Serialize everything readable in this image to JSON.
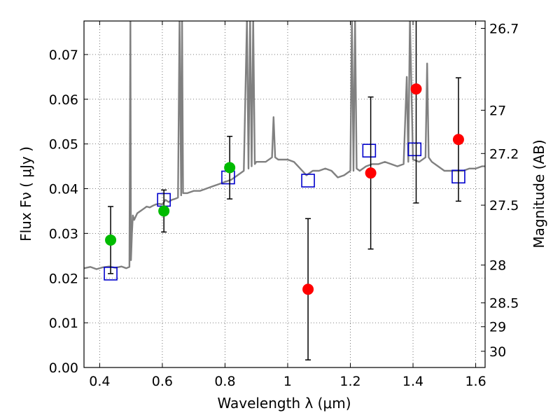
{
  "chart_data": {
    "type": "scatter",
    "title": "",
    "xlabel": "Wavelength  λ (μm)",
    "ylabel": "Flux  Fν  ( μJy )",
    "ylabel_right": "Magnitude (AB)",
    "xlim": [
      0.35,
      1.63
    ],
    "ylim": [
      0.0,
      0.0775
    ],
    "grid": true,
    "x_ticks": [
      {
        "value": 0.4,
        "label": "0.4"
      },
      {
        "value": 0.6,
        "label": "0.6"
      },
      {
        "value": 0.8,
        "label": "0.8"
      },
      {
        "value": 1.0,
        "label": "1"
      },
      {
        "value": 1.2,
        "label": "1.2"
      },
      {
        "value": 1.4,
        "label": "1.4"
      },
      {
        "value": 1.6,
        "label": "1.6"
      }
    ],
    "y_ticks": [
      {
        "value": 0.0,
        "label": "0.00"
      },
      {
        "value": 0.01,
        "label": "0.01"
      },
      {
        "value": 0.02,
        "label": "0.02"
      },
      {
        "value": 0.03,
        "label": "0.03"
      },
      {
        "value": 0.04,
        "label": "0.04"
      },
      {
        "value": 0.05,
        "label": "0.05"
      },
      {
        "value": 0.06,
        "label": "0.06"
      },
      {
        "value": 0.07,
        "label": "0.07"
      }
    ],
    "right_ticks": [
      {
        "value": 26.7,
        "label": "26.7"
      },
      {
        "value": 27.0,
        "label": "27"
      },
      {
        "value": 27.2,
        "label": "27.2"
      },
      {
        "value": 27.5,
        "label": "27.5"
      },
      {
        "value": 28.0,
        "label": "28"
      },
      {
        "value": 28.5,
        "label": "28.5"
      },
      {
        "value": 29.0,
        "label": "29"
      },
      {
        "value": 30.0,
        "label": "30"
      }
    ],
    "colors": {
      "spectrum": "#808080",
      "optical": "#00bb00",
      "nir": "#ff0000",
      "model": "#0000cc",
      "errorbar": "#000000"
    },
    "series": [
      {
        "kind": "line",
        "color": "#808080",
        "x": [
          0.35,
          0.37,
          0.39,
          0.41,
          0.43,
          0.45,
          0.47,
          0.485,
          0.495,
          0.498,
          0.5,
          0.503,
          0.506,
          0.51,
          0.52,
          0.53,
          0.54,
          0.55,
          0.56,
          0.57,
          0.58,
          0.59,
          0.6,
          0.61,
          0.62,
          0.63,
          0.64,
          0.65,
          0.655,
          0.66,
          0.663,
          0.666,
          0.67,
          0.68,
          0.7,
          0.72,
          0.74,
          0.76,
          0.78,
          0.8,
          0.82,
          0.84,
          0.86,
          0.87,
          0.875,
          0.88,
          0.885,
          0.89,
          0.895,
          0.9,
          0.91,
          0.93,
          0.95,
          0.955,
          0.96,
          0.97,
          0.99,
          1.0,
          1.02,
          1.04,
          1.06,
          1.08,
          1.1,
          1.12,
          1.14,
          1.16,
          1.18,
          1.2,
          1.205,
          1.21,
          1.215,
          1.22,
          1.23,
          1.25,
          1.27,
          1.29,
          1.31,
          1.33,
          1.35,
          1.37,
          1.38,
          1.385,
          1.39,
          1.4,
          1.42,
          1.44,
          1.445,
          1.45,
          1.46,
          1.48,
          1.5,
          1.52,
          1.54,
          1.56,
          1.58,
          1.6,
          1.62,
          1.63
        ],
        "y": [
          0.0222,
          0.0225,
          0.022,
          0.0224,
          0.0226,
          0.0223,
          0.0226,
          0.0222,
          0.0225,
          0.078,
          0.024,
          0.03,
          0.034,
          0.033,
          0.0345,
          0.035,
          0.0355,
          0.036,
          0.0358,
          0.0362,
          0.0365,
          0.0366,
          0.0365,
          0.0375,
          0.037,
          0.0375,
          0.0377,
          0.038,
          0.078,
          0.0385,
          0.078,
          0.039,
          0.039,
          0.039,
          0.0395,
          0.0395,
          0.04,
          0.0405,
          0.041,
          0.0415,
          0.042,
          0.043,
          0.044,
          0.078,
          0.0445,
          0.078,
          0.045,
          0.078,
          0.0455,
          0.046,
          0.046,
          0.046,
          0.047,
          0.056,
          0.047,
          0.0465,
          0.0465,
          0.0465,
          0.046,
          0.0445,
          0.043,
          0.044,
          0.044,
          0.0445,
          0.044,
          0.0425,
          0.043,
          0.044,
          0.078,
          0.044,
          0.078,
          0.0445,
          0.044,
          0.045,
          0.0455,
          0.0455,
          0.046,
          0.0455,
          0.045,
          0.0455,
          0.065,
          0.046,
          0.078,
          0.0465,
          0.046,
          0.047,
          0.068,
          0.047,
          0.046,
          0.045,
          0.044,
          0.044,
          0.044,
          0.044,
          0.0445,
          0.0445,
          0.045,
          0.045
        ]
      },
      {
        "kind": "open-square",
        "color": "#0000cc",
        "x": [
          0.435,
          0.605,
          0.81,
          1.065,
          1.26,
          1.405,
          1.545
        ],
        "y": [
          0.021,
          0.0375,
          0.0425,
          0.0418,
          0.0485,
          0.0488,
          0.0427
        ]
      },
      {
        "kind": "filled-circle",
        "color": "#00bb00",
        "x": [
          0.435,
          0.605,
          0.815
        ],
        "y": [
          0.0285,
          0.035,
          0.0447
        ],
        "err": [
          0.0075,
          0.0047,
          0.007
        ]
      },
      {
        "kind": "filled-circle",
        "color": "#ff0000",
        "x": [
          1.065,
          1.265,
          1.41,
          1.545
        ],
        "y": [
          0.0175,
          0.0435,
          0.0623,
          0.051
        ],
        "err": [
          0.0158,
          0.017,
          0.0255,
          0.0138
        ]
      }
    ]
  }
}
